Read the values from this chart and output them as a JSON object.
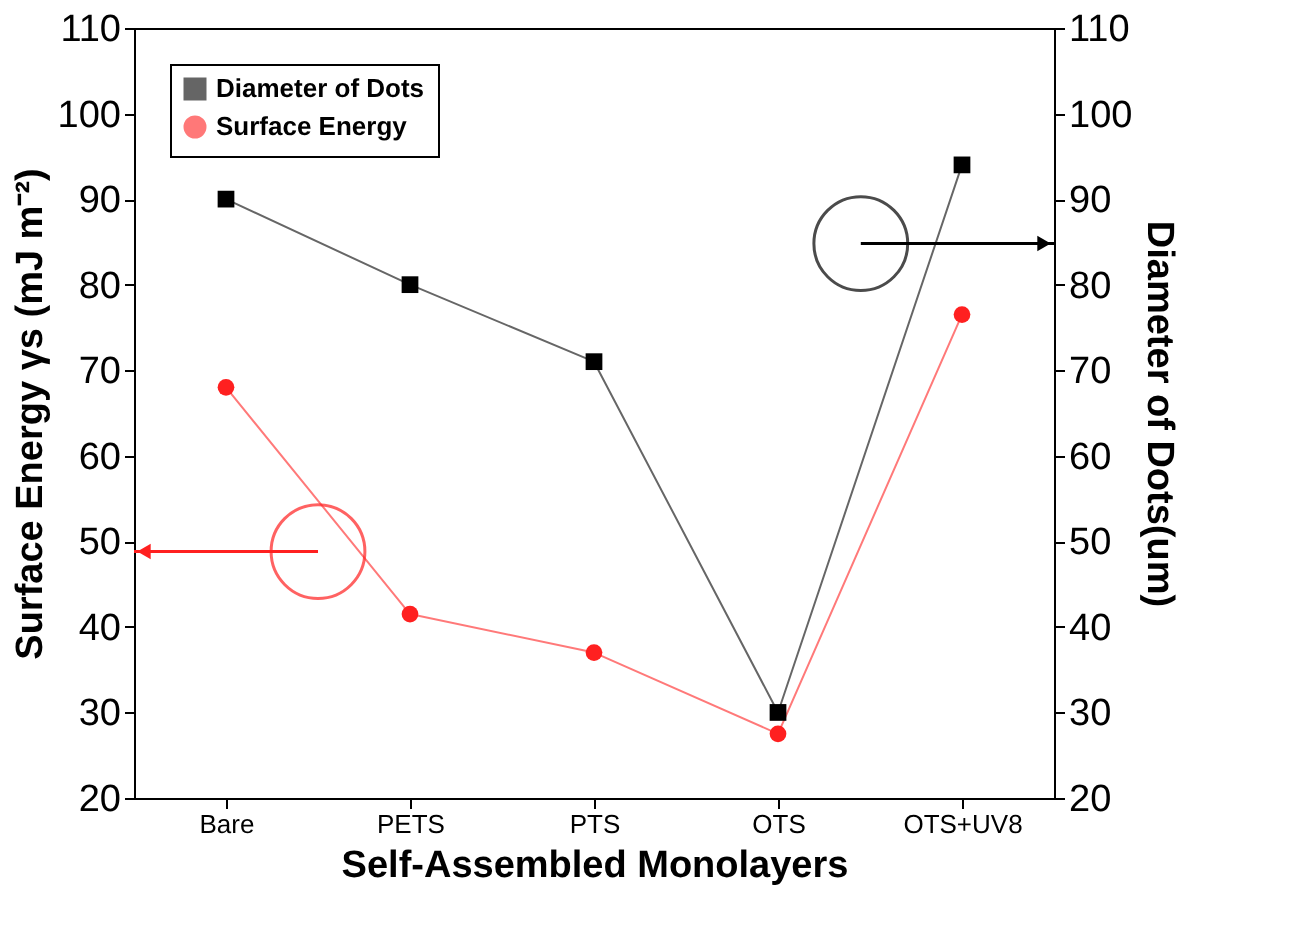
{
  "chart_data": {
    "type": "line",
    "xlabel": "Self-Assembled Monolayers",
    "ylabel": "Surface Energy γs (mJ m⁻²)",
    "y2label": "Diameter of Dots(um)",
    "categories": [
      "Bare",
      "PETS",
      "PTS",
      "OTS",
      "OTS+UV8"
    ],
    "series": [
      {
        "name": "Diameter of Dots",
        "color": "#000000",
        "marker": "square",
        "axis": "y2",
        "values": [
          90,
          80,
          71,
          30,
          94
        ]
      },
      {
        "name": "Surface Energy",
        "color": "#ff2020",
        "marker": "circle",
        "axis": "y",
        "values": [
          68,
          41.5,
          37,
          27.5,
          76.5
        ]
      }
    ],
    "ylim": [
      20,
      110
    ],
    "yticks": [
      20,
      30,
      40,
      50,
      60,
      70,
      80,
      90,
      100,
      110
    ],
    "y2lim": [
      20,
      110
    ],
    "y2ticks": [
      20,
      30,
      40,
      50,
      60,
      70,
      80,
      90,
      100,
      110
    ],
    "grid": false,
    "legend": "top left"
  }
}
